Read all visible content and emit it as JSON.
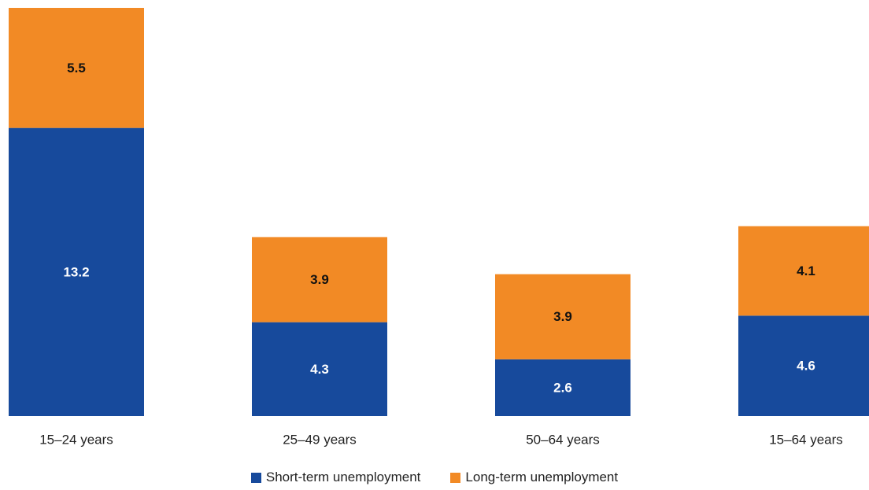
{
  "chart_data": {
    "type": "bar",
    "stacked": true,
    "categories": [
      "15–24 years",
      "25–49 years",
      "50–64 years",
      "15–64 years"
    ],
    "series": [
      {
        "name": "Short-term unemployment",
        "color": "#174A9C",
        "values": [
          13.2,
          4.3,
          2.6,
          4.6
        ]
      },
      {
        "name": "Long-term unemployment",
        "color": "#F28A25",
        "values": [
          5.5,
          3.9,
          3.9,
          4.1
        ]
      }
    ],
    "ylim": [
      0,
      18.7
    ],
    "grid": false,
    "legend_position": "bottom"
  }
}
